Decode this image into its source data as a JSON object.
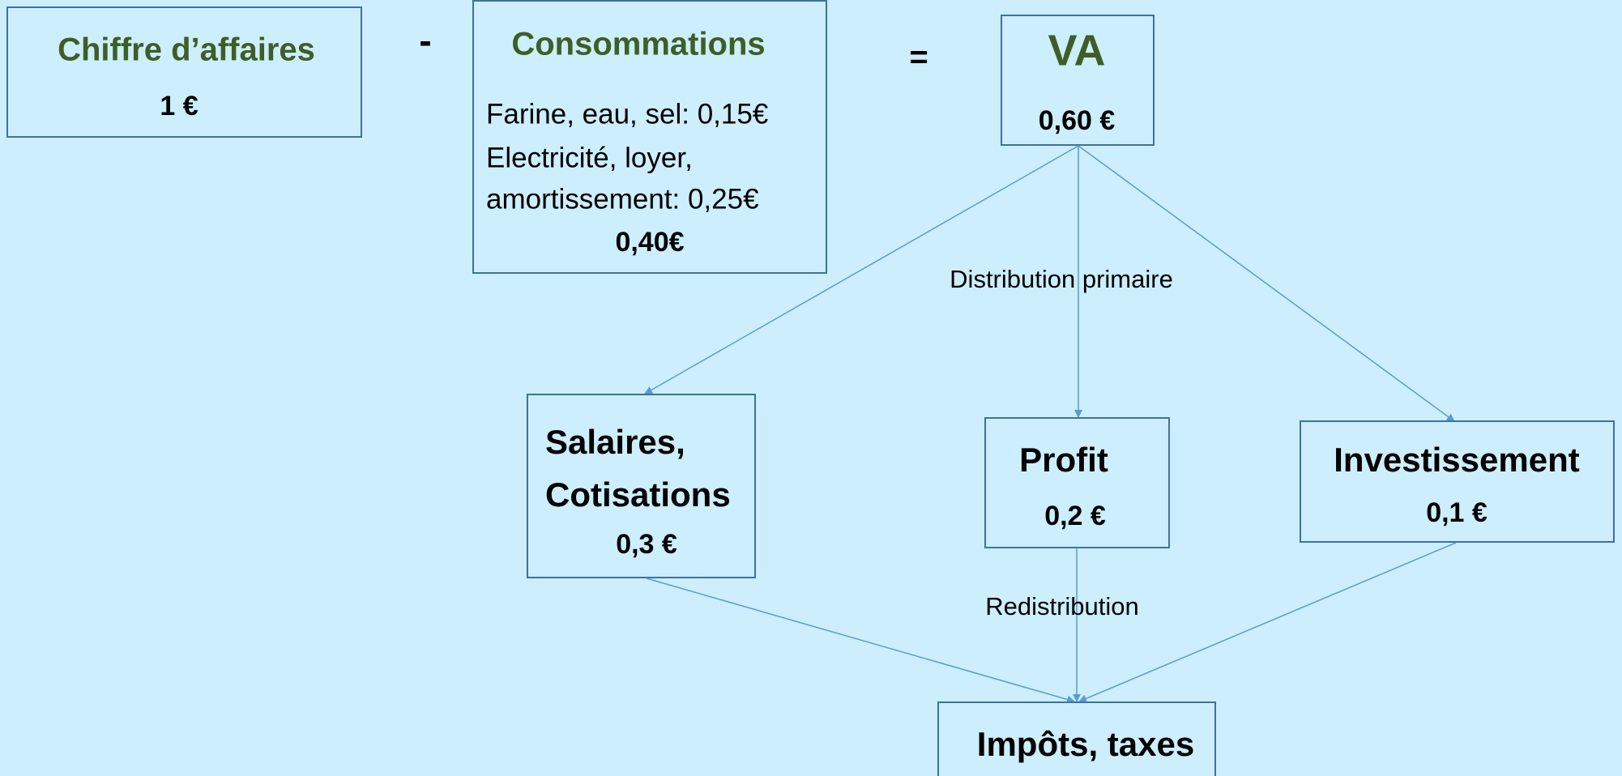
{
  "nodes": [
    {
      "label": "Chiffre d’affaires",
      "value": "1 €"
    },
    {
      "label": "Consommations",
      "lines": [
        "Farine, eau, sel: 0,15€",
        "Electricité, loyer,",
        "amortissement: 0,25€"
      ],
      "value": "0,40€"
    },
    {
      "label": "VA",
      "value": "0,60 €"
    },
    {
      "label": [
        "Salaires,",
        "Cotisations"
      ],
      "value": "0,3 €"
    },
    {
      "label": "Profit",
      "value": "0,2 €"
    },
    {
      "label": "Investissement",
      "value": "0,1 €"
    },
    {
      "label": "Impôts, taxes"
    }
  ],
  "operators": [
    "-",
    "="
  ],
  "edge_labels": [
    "Distribution primaire",
    "Redistribution"
  ]
}
